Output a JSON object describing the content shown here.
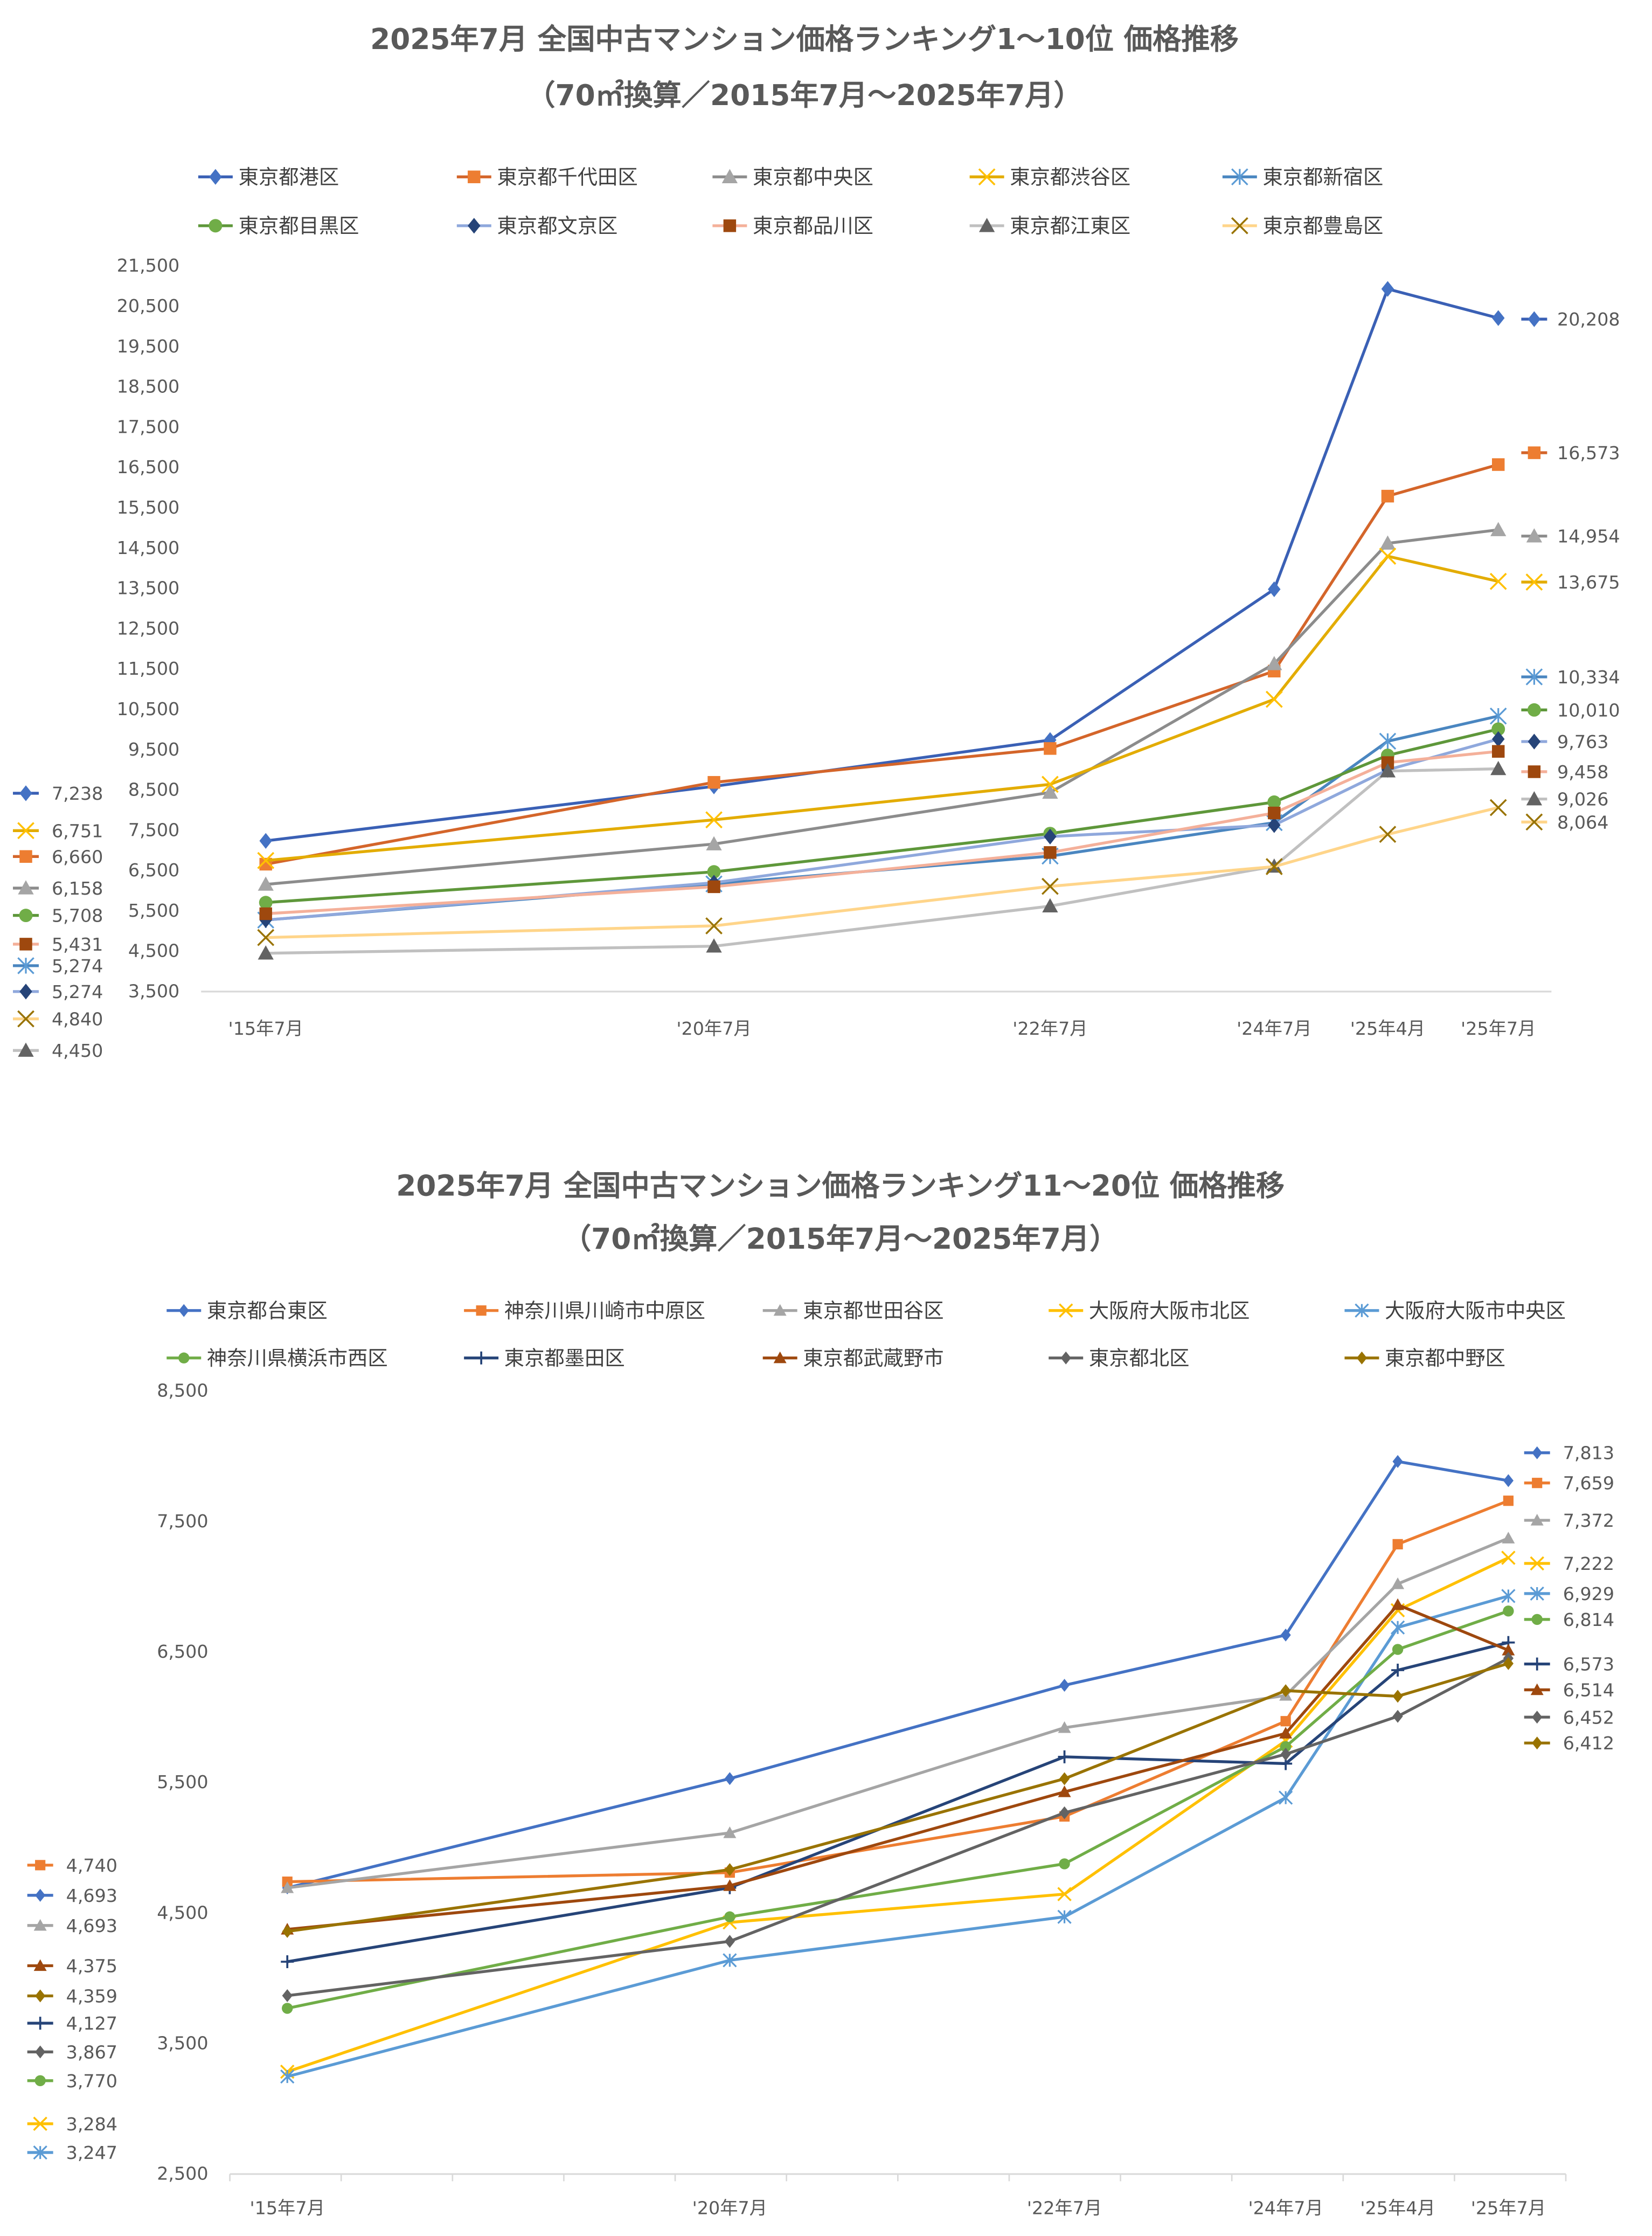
{
  "chart_data": [
    {
      "type": "line",
      "title": "2025年7月 全国中古マンション価格ランキング1～10位 価格推移",
      "subtitle": "（70㎡換算／2015年7月～2025年7月）",
      "xlabel": "",
      "ylabel": "",
      "categories": [
        "'15年7月",
        "'20年7月",
        "'22年7月",
        "'24年7月",
        "'25年4月",
        "'25年7月"
      ],
      "x_time_months": [
        0,
        60,
        84,
        108,
        117,
        120
      ],
      "ylim": [
        3500,
        21500
      ],
      "yticks": [
        "21,500",
        "20,500",
        "19,500",
        "18,500",
        "17,500",
        "16,500",
        "15,500",
        "14,500",
        "13,500",
        "12,500",
        "11,500",
        "10,500",
        "9,500",
        "8,500",
        "7,500",
        "6,500",
        "5,500",
        "4,500",
        "3,500"
      ],
      "grid": false,
      "legend_position": "top",
      "series": [
        {
          "name": "東京都港区",
          "marker": "diamond",
          "color": "#4472C4",
          "line_color": "#3A60B5",
          "values": [
            7238,
            8590,
            9740,
            13480,
            20930,
            20208
          ],
          "start_label": "7,238",
          "end_label": "20,208"
        },
        {
          "name": "東京都千代田区",
          "marker": "square",
          "color": "#ED7D31",
          "line_color": "#D4652A",
          "values": [
            6660,
            8690,
            9530,
            11450,
            15790,
            16573
          ],
          "start_label": "6,660",
          "end_label": "16,573"
        },
        {
          "name": "東京都中央区",
          "marker": "triangle",
          "color": "#A5A5A5",
          "line_color": "#8C8C8C",
          "values": [
            6158,
            7160,
            8440,
            11630,
            14620,
            14954
          ],
          "start_label": "6,158",
          "end_label": "14,954"
        },
        {
          "name": "東京都渋谷区",
          "marker": "x",
          "color": "#FFC000",
          "line_color": "#E3AC00",
          "values": [
            6751,
            7760,
            8640,
            10750,
            14300,
            13675
          ],
          "start_label": "6,751",
          "end_label": "13,675"
        },
        {
          "name": "東京都新宿区",
          "marker": "asterisk",
          "color": "#5B9BD5",
          "line_color": "#4A86C0",
          "values": [
            5274,
            6170,
            6860,
            7690,
            9710,
            10334
          ],
          "start_label": "5,274",
          "end_label": "10,334"
        },
        {
          "name": "東京都目黒区",
          "marker": "circle",
          "color": "#70AD47",
          "line_color": "#5E973A",
          "values": [
            5708,
            6470,
            7420,
            8200,
            9360,
            10010
          ],
          "start_label": "5,708",
          "end_label": "10,010"
        },
        {
          "name": "東京都文京区",
          "marker": "diamond",
          "color": "#264478",
          "line_color": "#8FA8DC",
          "values": [
            5274,
            6200,
            7345,
            7630,
            9000,
            9763
          ],
          "start_label": "5,274",
          "end_label": "9,763"
        },
        {
          "name": "東京都品川区",
          "marker": "square",
          "color": "#9E480E",
          "line_color": "#F4B09A",
          "values": [
            5431,
            6100,
            6950,
            7930,
            9180,
            9458
          ],
          "start_label": "5,431",
          "end_label": "9,458"
        },
        {
          "name": "東京都江東区",
          "marker": "triangle",
          "color": "#636363",
          "line_color": "#C0C0C0",
          "values": [
            4450,
            4625,
            5620,
            6607,
            8970,
            9026
          ],
          "start_label": "4,450",
          "end_label": "9,026"
        },
        {
          "name": "東京都豊島区",
          "marker": "x",
          "color": "#997300",
          "line_color": "#FFD58A",
          "values": [
            4840,
            5130,
            6110,
            6600,
            7400,
            8064
          ],
          "start_label": "4,840",
          "end_label": "8,064"
        }
      ]
    },
    {
      "type": "line",
      "title": "2025年7月 全国中古マンション価格ランキング11～20位 価格推移",
      "subtitle": "（70㎡換算／2015年7月～2025年7月）",
      "xlabel": "",
      "ylabel": "",
      "categories": [
        "'15年7月",
        "'20年7月",
        "'22年7月",
        "'24年7月",
        "'25年4月",
        "'25年7月"
      ],
      "x_time_months": [
        0,
        60,
        84,
        108,
        117,
        120
      ],
      "ylim": [
        2500,
        8500
      ],
      "yticks": [
        "8,500",
        "7,500",
        "6,500",
        "5,500",
        "4,500",
        "3,500",
        "2,500"
      ],
      "grid": false,
      "legend_position": "top",
      "series": [
        {
          "name": "東京都台東区",
          "marker": "diamond",
          "color": "#4472C4",
          "line_color": "#4472C4",
          "values": [
            4693,
            5530,
            6245,
            6630,
            7960,
            7813
          ],
          "start_label": "4,693",
          "end_label": "7,813"
        },
        {
          "name": "神奈川県川崎市中原区",
          "marker": "square",
          "color": "#ED7D31",
          "line_color": "#ED7D31",
          "values": [
            4740,
            4810,
            5240,
            5970,
            7326,
            7659
          ],
          "start_label": "4,740",
          "end_label": "7,659"
        },
        {
          "name": "東京都世田谷区",
          "marker": "triangle",
          "color": "#A5A5A5",
          "line_color": "#A5A5A5",
          "values": [
            4693,
            5114,
            5920,
            6167,
            7022,
            7372
          ],
          "start_label": "4,693",
          "end_label": "7,372"
        },
        {
          "name": "大阪府大阪市北区",
          "marker": "x",
          "color": "#FFC000",
          "line_color": "#FFC000",
          "values": [
            3284,
            4428,
            4645,
            5820,
            6820,
            7222
          ],
          "start_label": "3,284",
          "end_label": "7,222"
        },
        {
          "name": "大阪府大阪市中央区",
          "marker": "asterisk",
          "color": "#5B9BD5",
          "line_color": "#5B9BD5",
          "values": [
            3247,
            4138,
            4471,
            5384,
            6688,
            6929
          ],
          "start_label": "3,247",
          "end_label": "6,929"
        },
        {
          "name": "神奈川県横浜市西区",
          "marker": "circle",
          "color": "#70AD47",
          "line_color": "#70AD47",
          "values": [
            3770,
            4471,
            4877,
            5775,
            6520,
            6814
          ],
          "start_label": "3,770",
          "end_label": "6,814"
        },
        {
          "name": "東京都墨田区",
          "marker": "plus",
          "color": "#264478",
          "line_color": "#264478",
          "values": [
            4127,
            4694,
            5697,
            5645,
            6361,
            6573
          ],
          "start_label": "4,127",
          "end_label": "6,573"
        },
        {
          "name": "東京都武蔵野市",
          "marker": "triangle",
          "color": "#9E480E",
          "line_color": "#9E480E",
          "values": [
            4375,
            4709,
            5428,
            5877,
            6862,
            6514
          ],
          "start_label": "4,375",
          "end_label": "6,514"
        },
        {
          "name": "東京都北区",
          "marker": "diamond",
          "color": "#636363",
          "line_color": "#636363",
          "values": [
            3867,
            4283,
            5268,
            5717,
            6007,
            6452
          ],
          "start_label": "3,867",
          "end_label": "6,452"
        },
        {
          "name": "東京都中野区",
          "marker": "diamond",
          "color": "#997300",
          "line_color": "#997300",
          "values": [
            4359,
            4833,
            5529,
            6204,
            6161,
            6412
          ],
          "start_label": "4,359",
          "end_label": "6,412"
        }
      ]
    }
  ]
}
